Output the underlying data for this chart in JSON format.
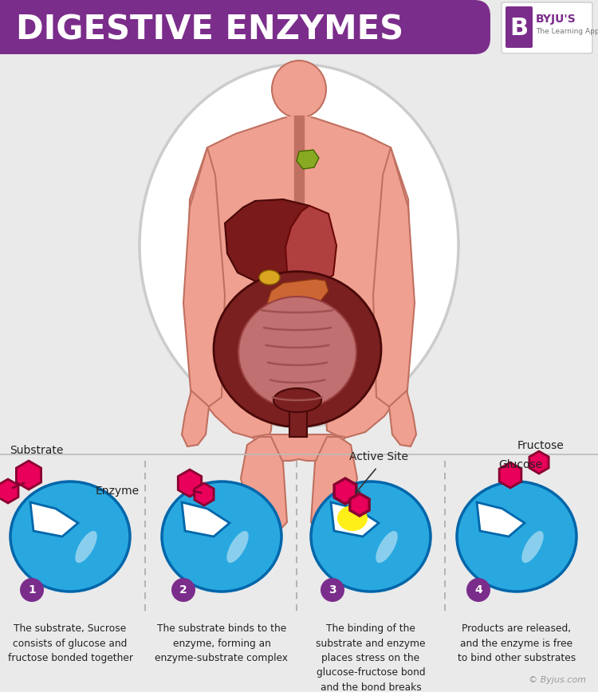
{
  "title": "DIGESTIVE ENZYMES",
  "title_bg_color": "#7B2D8B",
  "title_text_color": "#FFFFFF",
  "bg_color": "#EAEAEA",
  "body_color": "#F0A090",
  "body_outline": "#C07060",
  "liver_color": "#7A1A1A",
  "intestine_dark": "#7A2020",
  "intestine_light": "#C07070",
  "stomach_color": "#B04040",
  "gallbladder_color": "#DAA520",
  "pancreas_color": "#CC6633",
  "esophagus_color": "#C07060",
  "salivary_color": "#88AA22",
  "enzyme_blue": "#29A8E0",
  "substrate_pink": "#E8005A",
  "active_site_yellow": "#FFEE00",
  "purple_circle": "#7B2D8B",
  "oval_bg": "#F0F0F0",
  "oval_outline": "#CCCCCC",
  "step1_label": "Substrate",
  "step1_enzyme_label": "Enzyme",
  "step1_text": "The substrate, Sucrose\nconsists of glucose and\nfructose bonded together",
  "step2_text": "The substrate binds to the\nenzyme, forming an\nenzyme-substrate complex",
  "step3_label": "Active Site",
  "step3_text": "The binding of the\nsubstrate and enzyme\nplaces stress on the\nglucose-fructose bond\nand the bond breaks",
  "step4_glucose_label": "Glucose",
  "step4_fructose_label": "Fructose",
  "step4_text": "Products are released,\nand the enzyme is free\nto bind other substrates",
  "byline": "© Byjus.com",
  "separator_color": "#BBBBBB",
  "text_color": "#222222"
}
